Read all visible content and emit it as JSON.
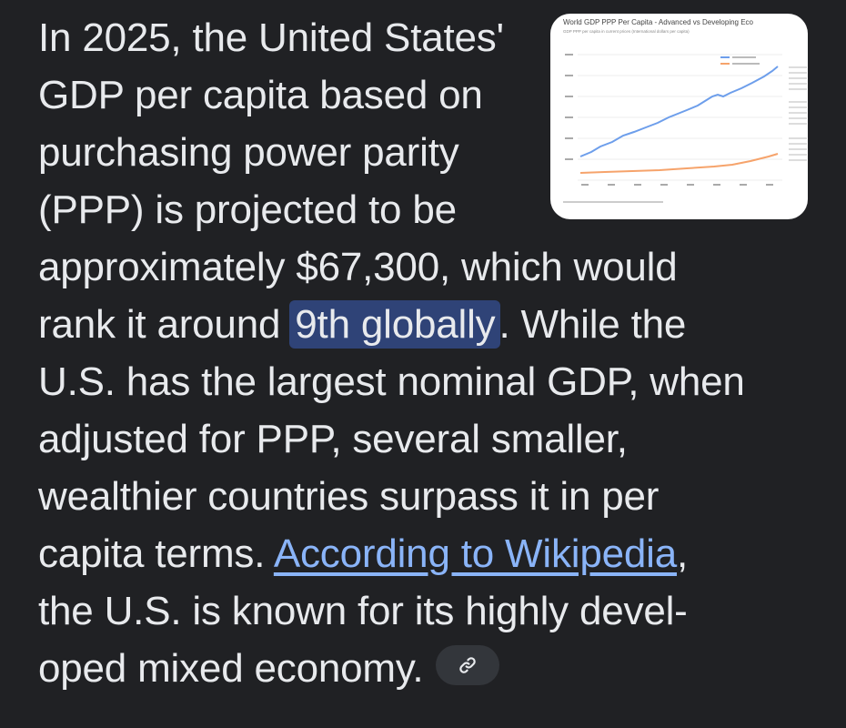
{
  "thumbnail": {
    "title": "World GDP PPP Per Capita - Advanced vs Developing Eco",
    "subtitle": "GDP PPP per capita in current prices (International dollars per capita)",
    "series_colors": [
      "#6d9eeb",
      "#f6a36b"
    ]
  },
  "answer": {
    "lines_left": [
      "In 2025, the United States'",
      "GDP per capita based on",
      "purchasing power parity",
      "(PPP) is projected to be"
    ],
    "line5": "approximately $67,300, which would",
    "line6_before": "rank it around ",
    "line6_highlight": "9th globally",
    "line6_after": ". While the",
    "line7": "U.S. has the largest nominal GDP, when",
    "line8": "adjusted for PPP, several smaller,",
    "line9": "wealthier countries surpass it in per",
    "line10_before": "capita terms. ",
    "line10_link": "According to Wikipedia",
    "line10_after": ",",
    "line11": "the U.S. is known for its highly devel-",
    "line12": "oped mixed economy."
  },
  "chip": {
    "icon": "link-icon"
  }
}
